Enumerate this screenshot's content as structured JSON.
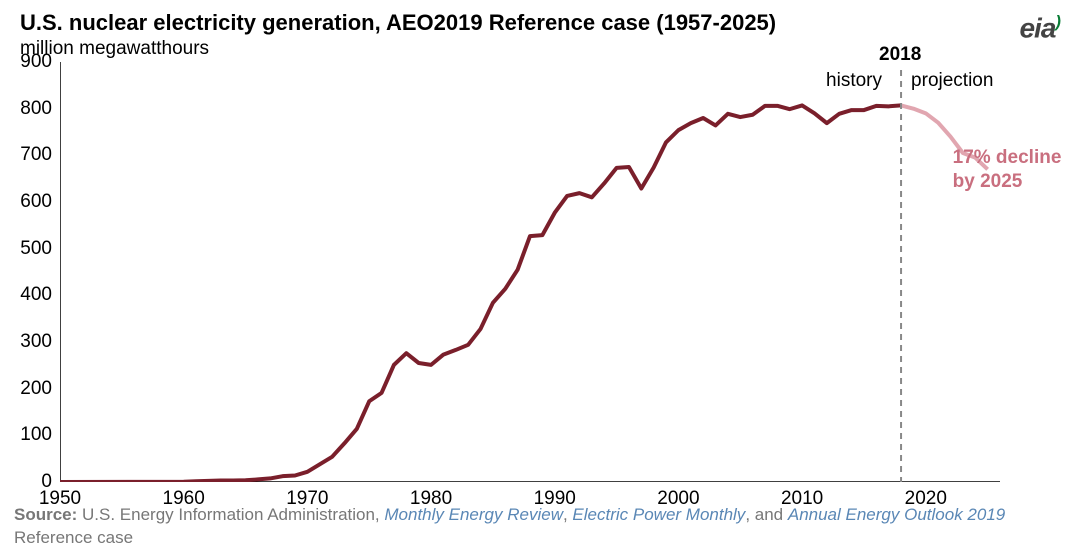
{
  "title": "U.S. nuclear electricity generation, AEO2019 Reference case (1957-2025)",
  "subtitle": "million megawatthours",
  "logo_text": "eia",
  "source": {
    "label": "Source:",
    "plain1": " U.S. Energy Information Administration, ",
    "ital1": "Monthly Energy Review",
    "plain2": ", ",
    "ital2": "Electric Power Monthly",
    "plain3": ", and ",
    "ital3": "Annual Energy Outlook 2019",
    "plain4": " Reference case"
  },
  "chart": {
    "type": "line",
    "background_color": "#ffffff",
    "axis_color": "#000000",
    "title_fontsize": 22,
    "subtitle_fontsize": 19,
    "tick_fontsize": 19,
    "annotation_fontsize": 19,
    "source_fontsize": 17,
    "logo_fontsize": 28,
    "xlim": [
      1950,
      2026
    ],
    "ylim": [
      0,
      900
    ],
    "x_ticks": [
      1950,
      1960,
      1970,
      1980,
      1990,
      2000,
      2010,
      2020
    ],
    "y_ticks": [
      0,
      100,
      200,
      300,
      400,
      500,
      600,
      700,
      800,
      900
    ],
    "divider_x": 2018,
    "divider_label": "2018",
    "history_label": "history",
    "projection_label": "projection",
    "decline_label_line1": "17% decline",
    "decline_label_line2": "by 2025",
    "decline_color": "#c96f7f",
    "history_color": "#7a1f2b",
    "projection_color": "#e1a6b0",
    "line_width_history": 4,
    "line_width_projection": 4,
    "tick_len": 7,
    "series_history": [
      {
        "x": 1950,
        "y": 0
      },
      {
        "x": 1957,
        "y": 0.2
      },
      {
        "x": 1958,
        "y": 0.2
      },
      {
        "x": 1959,
        "y": 0.2
      },
      {
        "x": 1960,
        "y": 0.5
      },
      {
        "x": 1961,
        "y": 1.7
      },
      {
        "x": 1962,
        "y": 2.3
      },
      {
        "x": 1963,
        "y": 3.2
      },
      {
        "x": 1964,
        "y": 3.3
      },
      {
        "x": 1965,
        "y": 3.7
      },
      {
        "x": 1966,
        "y": 5.5
      },
      {
        "x": 1967,
        "y": 7.7
      },
      {
        "x": 1968,
        "y": 12.5
      },
      {
        "x": 1969,
        "y": 13.9
      },
      {
        "x": 1970,
        "y": 21.8
      },
      {
        "x": 1971,
        "y": 38
      },
      {
        "x": 1972,
        "y": 54
      },
      {
        "x": 1973,
        "y": 83
      },
      {
        "x": 1974,
        "y": 114
      },
      {
        "x": 1975,
        "y": 173
      },
      {
        "x": 1976,
        "y": 191
      },
      {
        "x": 1977,
        "y": 251
      },
      {
        "x": 1978,
        "y": 276
      },
      {
        "x": 1979,
        "y": 255
      },
      {
        "x": 1980,
        "y": 251
      },
      {
        "x": 1981,
        "y": 273
      },
      {
        "x": 1982,
        "y": 283
      },
      {
        "x": 1983,
        "y": 294
      },
      {
        "x": 1984,
        "y": 328
      },
      {
        "x": 1985,
        "y": 384
      },
      {
        "x": 1986,
        "y": 414
      },
      {
        "x": 1987,
        "y": 455
      },
      {
        "x": 1988,
        "y": 527
      },
      {
        "x": 1989,
        "y": 529
      },
      {
        "x": 1990,
        "y": 577
      },
      {
        "x": 1991,
        "y": 613
      },
      {
        "x": 1992,
        "y": 619
      },
      {
        "x": 1993,
        "y": 610
      },
      {
        "x": 1994,
        "y": 640
      },
      {
        "x": 1995,
        "y": 673
      },
      {
        "x": 1996,
        "y": 675
      },
      {
        "x": 1997,
        "y": 629
      },
      {
        "x": 1998,
        "y": 674
      },
      {
        "x": 1999,
        "y": 728
      },
      {
        "x": 2000,
        "y": 754
      },
      {
        "x": 2001,
        "y": 769
      },
      {
        "x": 2002,
        "y": 780
      },
      {
        "x": 2003,
        "y": 764
      },
      {
        "x": 2004,
        "y": 789
      },
      {
        "x": 2005,
        "y": 782
      },
      {
        "x": 2006,
        "y": 787
      },
      {
        "x": 2007,
        "y": 806
      },
      {
        "x": 2008,
        "y": 806
      },
      {
        "x": 2009,
        "y": 799
      },
      {
        "x": 2010,
        "y": 807
      },
      {
        "x": 2011,
        "y": 790
      },
      {
        "x": 2012,
        "y": 769
      },
      {
        "x": 2013,
        "y": 789
      },
      {
        "x": 2014,
        "y": 797
      },
      {
        "x": 2015,
        "y": 797
      },
      {
        "x": 2016,
        "y": 806
      },
      {
        "x": 2017,
        "y": 805
      },
      {
        "x": 2018,
        "y": 807
      }
    ],
    "series_projection": [
      {
        "x": 2018,
        "y": 807
      },
      {
        "x": 2019,
        "y": 800
      },
      {
        "x": 2020,
        "y": 790
      },
      {
        "x": 2021,
        "y": 770
      },
      {
        "x": 2022,
        "y": 740
      },
      {
        "x": 2023,
        "y": 705
      },
      {
        "x": 2024,
        "y": 695
      },
      {
        "x": 2025,
        "y": 670
      }
    ]
  }
}
